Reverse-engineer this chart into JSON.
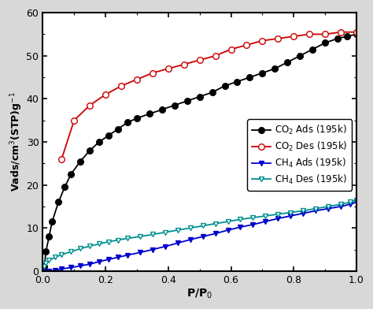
{
  "title": "",
  "xlabel": "P/P$_0$",
  "ylabel": "Vads/cm$^3$(STP)g$^{-1}$",
  "xlim": [
    0.0,
    1.0
  ],
  "ylim": [
    0,
    60
  ],
  "yticks": [
    0,
    10,
    20,
    30,
    40,
    50,
    60
  ],
  "xticks": [
    0.0,
    0.2,
    0.4,
    0.6,
    0.8,
    1.0
  ],
  "co2_ads_x": [
    0.005,
    0.01,
    0.02,
    0.03,
    0.05,
    0.07,
    0.09,
    0.12,
    0.15,
    0.18,
    0.21,
    0.24,
    0.27,
    0.3,
    0.34,
    0.38,
    0.42,
    0.46,
    0.5,
    0.54,
    0.58,
    0.62,
    0.66,
    0.7,
    0.74,
    0.78,
    0.82,
    0.86,
    0.9,
    0.94,
    0.97,
    1.0
  ],
  "co2_ads_y": [
    1.0,
    4.5,
    8.0,
    11.5,
    16.0,
    19.5,
    22.5,
    25.5,
    28.0,
    30.0,
    31.5,
    33.0,
    34.5,
    35.5,
    36.5,
    37.5,
    38.5,
    39.5,
    40.5,
    41.5,
    43.0,
    44.0,
    45.0,
    46.0,
    47.0,
    48.5,
    50.0,
    51.5,
    53.0,
    54.0,
    54.5,
    55.0
  ],
  "co2_des_x": [
    0.06,
    0.1,
    0.15,
    0.2,
    0.25,
    0.3,
    0.35,
    0.4,
    0.45,
    0.5,
    0.55,
    0.6,
    0.65,
    0.7,
    0.75,
    0.8,
    0.85,
    0.9,
    0.95,
    1.0
  ],
  "co2_des_y": [
    26.0,
    35.0,
    38.5,
    41.0,
    43.0,
    44.5,
    46.0,
    47.0,
    48.0,
    49.0,
    50.0,
    51.5,
    52.5,
    53.5,
    54.0,
    54.5,
    55.0,
    55.0,
    55.5,
    55.5
  ],
  "ch4_ads_x": [
    0.005,
    0.01,
    0.02,
    0.04,
    0.06,
    0.09,
    0.12,
    0.15,
    0.18,
    0.21,
    0.24,
    0.27,
    0.31,
    0.35,
    0.39,
    0.43,
    0.47,
    0.51,
    0.55,
    0.59,
    0.63,
    0.67,
    0.71,
    0.75,
    0.79,
    0.83,
    0.87,
    0.91,
    0.95,
    0.98,
    1.0
  ],
  "ch4_ads_y": [
    -0.5,
    -0.3,
    -0.1,
    0.2,
    0.5,
    0.8,
    1.2,
    1.6,
    2.2,
    2.7,
    3.2,
    3.7,
    4.3,
    5.0,
    5.7,
    6.5,
    7.3,
    8.0,
    8.7,
    9.5,
    10.2,
    10.8,
    11.5,
    12.2,
    12.8,
    13.4,
    14.0,
    14.5,
    15.0,
    15.5,
    16.0
  ],
  "ch4_des_x": [
    0.005,
    0.01,
    0.02,
    0.04,
    0.06,
    0.09,
    0.12,
    0.15,
    0.18,
    0.21,
    0.24,
    0.27,
    0.31,
    0.35,
    0.39,
    0.43,
    0.47,
    0.51,
    0.55,
    0.59,
    0.63,
    0.67,
    0.71,
    0.75,
    0.79,
    0.83,
    0.87,
    0.91,
    0.95,
    0.98,
    1.0
  ],
  "ch4_des_y": [
    1.0,
    1.8,
    2.5,
    3.2,
    3.8,
    4.5,
    5.2,
    5.8,
    6.3,
    6.8,
    7.2,
    7.6,
    8.0,
    8.5,
    9.0,
    9.5,
    10.0,
    10.5,
    11.0,
    11.5,
    12.0,
    12.4,
    12.8,
    13.2,
    13.6,
    14.0,
    14.5,
    15.0,
    15.5,
    16.0,
    16.5
  ],
  "co2_ads_color": "#000000",
  "co2_des_color": "#cc0000",
  "ch4_ads_color": "#0000cc",
  "ch4_des_color": "#009090",
  "legend_labels": [
    "CO$_2$ Ads (195k)",
    "CO$_2$ Des (195k)",
    "CH$_4$ Ads (195k)",
    "CH$_4$ Des (195k)"
  ],
  "background_color": "#ffffff",
  "figure_bg": "#d8d8d8"
}
